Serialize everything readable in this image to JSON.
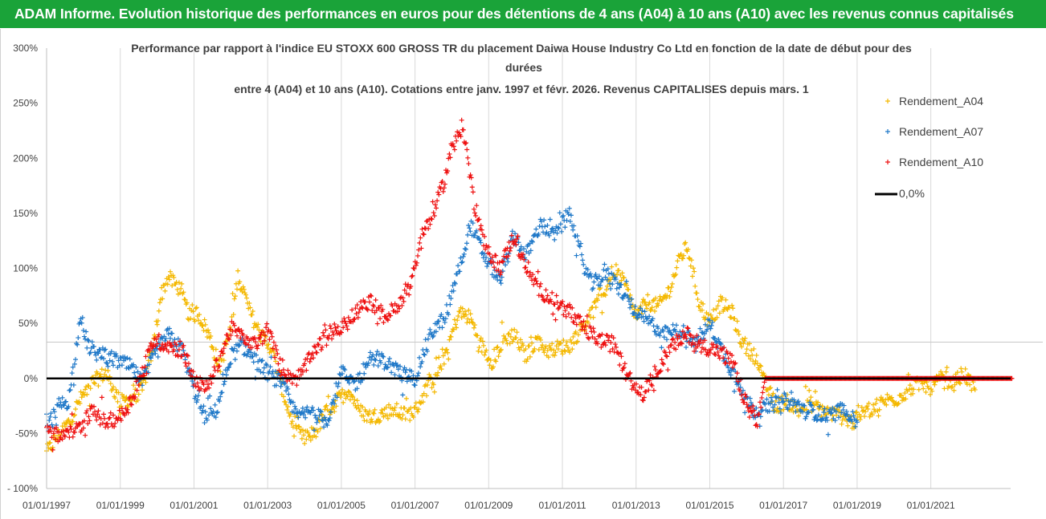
{
  "header": {
    "title": "ADAM Informe. Evolution historique des performances en euros pour des détentions de 4 ans (A04) à 10 ans (A10) avec les revenus connus capitalisés"
  },
  "colors": {
    "header_bg": "#1aa339",
    "A04": "#f4b800",
    "A07": "#1f78c8",
    "A10": "#ee1010",
    "zero": "#000000"
  },
  "chart_data": {
    "type": "scatter",
    "title_lines": [
      "Performance par rapport à l'indice EU STOXX 600 GROSS TR  du placement Daiwa House Industry Co Ltd en fonction de la date de début pour des",
      "durées",
      "entre 4 (A04) et 10 ans (A10).  Cotations entre janv. 1997 et févr. 2026. Revenus CAPITALISES depuis mars. 1"
    ],
    "x_tick_labels": [
      "01/01/1997",
      "01/01/1999",
      "01/01/2001",
      "01/01/2003",
      "01/01/2005",
      "01/01/2007",
      "01/01/2009",
      "01/01/2011",
      "01/01/2013",
      "01/01/2015",
      "01/01/2017",
      "01/01/2019",
      "01/01/2021"
    ],
    "x_range": [
      "1997-01-01",
      "2023-03-01"
    ],
    "y_tick_labels": [
      "300%",
      "250%",
      "200%",
      "150%",
      "100%",
      "50%",
      "0%",
      "-50%",
      "- 100%"
    ],
    "y_range": [
      -100,
      300
    ],
    "grid": "vertical",
    "legend_position": "right",
    "legend": [
      "Rendement_A04",
      "Rendement_A07",
      "Rendement_A10",
      "0,0%"
    ],
    "series": [
      {
        "name": "Rendement_A04",
        "x": [
          1997.0,
          1997.3,
          1997.6,
          1997.9,
          1998.2,
          1998.6,
          1999.0,
          1999.3,
          1999.6,
          1999.9,
          2000.1,
          2000.3,
          2000.6,
          2000.9,
          2001.1,
          2001.4,
          2001.7,
          2002.0,
          2002.2,
          2002.5,
          2002.8,
          2003.1,
          2003.4,
          2003.7,
          2004.0,
          2004.3,
          2004.6,
          2004.9,
          2005.2,
          2005.5,
          2005.8,
          2006.1,
          2006.4,
          2006.7,
          2007.0,
          2007.3,
          2007.6,
          2007.9,
          2008.2,
          2008.5,
          2008.8,
          2009.1,
          2009.4,
          2009.7,
          2010.0,
          2010.3,
          2010.6,
          2010.9,
          2011.2,
          2011.5,
          2011.8,
          2012.1,
          2012.4,
          2012.7,
          2013.0,
          2013.3,
          2013.6,
          2013.9,
          2014.2,
          2014.4,
          2014.7,
          2015.0,
          2015.3,
          2015.6,
          2015.9,
          2016.2,
          2016.5,
          2016.8,
          2017.1,
          2017.4,
          2017.7,
          2018.0,
          2018.3,
          2018.6,
          2018.9,
          2019.2,
          2019.5,
          2019.8,
          2020.1,
          2020.4,
          2020.7,
          2021.0,
          2021.3,
          2021.6,
          2021.9,
          2022.2
        ],
        "y": [
          -68,
          -52,
          -40,
          -20,
          -5,
          5,
          -22,
          -18,
          -10,
          30,
          75,
          92,
          82,
          55,
          60,
          40,
          10,
          45,
          95,
          62,
          40,
          28,
          -10,
          -45,
          -55,
          -48,
          -30,
          -20,
          -10,
          -30,
          -35,
          -32,
          -28,
          -33,
          -30,
          -10,
          5,
          30,
          60,
          55,
          30,
          15,
          35,
          40,
          20,
          35,
          25,
          28,
          30,
          45,
          60,
          75,
          100,
          85,
          55,
          70,
          65,
          80,
          110,
          120,
          70,
          50,
          68,
          60,
          30,
          22,
          -5,
          -25,
          -20,
          -30,
          -22,
          -28,
          -32,
          -35,
          -40,
          -30,
          -25,
          -20,
          -18,
          -10,
          -5,
          -8,
          0,
          -5,
          5,
          -12
        ]
      },
      {
        "name": "Rendement_A07",
        "x": [
          1997.0,
          1997.3,
          1997.6,
          1997.9,
          1998.2,
          1998.6,
          1999.0,
          1999.3,
          1999.6,
          1999.9,
          2000.3,
          2000.7,
          2001.0,
          2001.3,
          2001.6,
          2002.0,
          2002.3,
          2002.7,
          2003.0,
          2003.4,
          2003.8,
          2004.2,
          2004.6,
          2005.0,
          2005.4,
          2005.8,
          2006.2,
          2006.6,
          2007.0,
          2007.4,
          2007.8,
          2008.2,
          2008.5,
          2008.9,
          2009.3,
          2009.7,
          2010.0,
          2010.4,
          2010.8,
          2011.2,
          2011.5,
          2011.8,
          2012.2,
          2012.6,
          2013.0,
          2013.4,
          2013.8,
          2014.2,
          2014.6,
          2015.0,
          2015.4,
          2015.8,
          2016.2,
          2016.6,
          2017.0,
          2017.4,
          2017.8,
          2018.2,
          2018.6,
          2019.0
        ],
        "y": [
          -45,
          -25,
          -20,
          50,
          25,
          20,
          15,
          10,
          -5,
          20,
          40,
          25,
          -10,
          -35,
          -30,
          20,
          30,
          15,
          5,
          -5,
          -35,
          -30,
          -40,
          5,
          -5,
          20,
          15,
          5,
          0,
          40,
          55,
          100,
          140,
          110,
          90,
          130,
          110,
          140,
          130,
          150,
          110,
          85,
          95,
          80,
          60,
          50,
          40,
          45,
          30,
          50,
          20,
          -5,
          -30,
          -25,
          -20,
          -25,
          -30,
          -35,
          -28,
          -35
        ]
      },
      {
        "name": "Rendement_A10",
        "x": [
          1997.0,
          1997.3,
          1997.6,
          1997.9,
          1998.2,
          1998.6,
          1999.0,
          1999.3,
          1999.6,
          1999.9,
          2000.3,
          2000.7,
          2001.0,
          2001.3,
          2001.6,
          2002.0,
          2002.3,
          2002.7,
          2003.0,
          2003.4,
          2003.8,
          2004.2,
          2004.6,
          2005.0,
          2005.4,
          2005.8,
          2006.2,
          2006.6,
          2006.9,
          2007.2,
          2007.5,
          2007.8,
          2008.0,
          2008.3,
          2008.6,
          2008.9,
          2009.3,
          2009.7,
          2010.0,
          2010.4,
          2010.8,
          2011.2,
          2011.6,
          2012.0,
          2012.4,
          2012.8,
          2013.2,
          2013.6,
          2014.0,
          2014.4,
          2014.8,
          2015.2,
          2015.6,
          2016.0,
          2016.3,
          2016.5,
          2017.0,
          2018.0,
          2019.0,
          2020.0,
          2021.0,
          2022.0,
          2023.2
        ],
        "y": [
          -45,
          -52,
          -50,
          -45,
          -30,
          -40,
          -35,
          -20,
          5,
          35,
          30,
          25,
          0,
          -10,
          10,
          45,
          40,
          30,
          45,
          5,
          0,
          20,
          40,
          45,
          60,
          70,
          55,
          70,
          90,
          130,
          150,
          180,
          210,
          230,
          160,
          120,
          100,
          130,
          100,
          80,
          70,
          60,
          45,
          35,
          30,
          0,
          -15,
          10,
          30,
          40,
          30,
          25,
          15,
          -25,
          -40,
          0,
          0,
          0,
          0,
          0,
          0,
          0,
          0
        ]
      }
    ],
    "reference_line": {
      "name": "0,0%",
      "y": 0
    }
  }
}
